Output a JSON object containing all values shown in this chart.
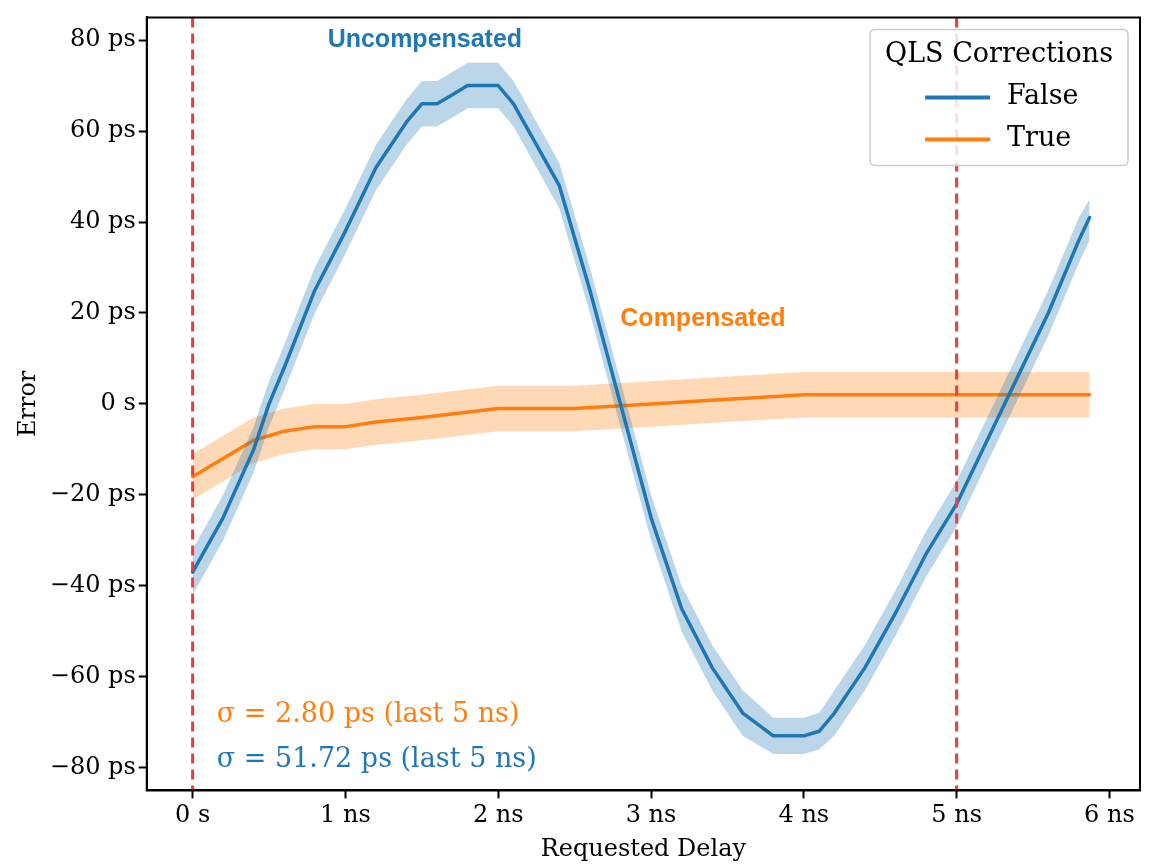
{
  "chart_data": {
    "type": "line",
    "xlabel": "Requested Delay",
    "ylabel": "Error",
    "legend_title": "QLS Corrections",
    "legend": "top right",
    "grid": false,
    "marker": "none",
    "xlim": [
      -0.3,
      6.2
    ],
    "ylim": [
      -85,
      85
    ],
    "xticks": [
      {
        "value": 0,
        "label": "0 s"
      },
      {
        "value": 1,
        "label": "1 ns"
      },
      {
        "value": 2,
        "label": "2 ns"
      },
      {
        "value": 3,
        "label": "3 ns"
      },
      {
        "value": 4,
        "label": "4 ns"
      },
      {
        "value": 5,
        "label": "5 ns"
      },
      {
        "value": 6,
        "label": "6 ns"
      }
    ],
    "yticks": [
      {
        "value": -80,
        "label": "−80 ps"
      },
      {
        "value": -60,
        "label": "−60 ps"
      },
      {
        "value": -40,
        "label": "−40 ps"
      },
      {
        "value": -20,
        "label": "−20 ps"
      },
      {
        "value": 0,
        "label": "0 s"
      },
      {
        "value": 20,
        "label": "20 ps"
      },
      {
        "value": 40,
        "label": "40 ps"
      },
      {
        "value": 60,
        "label": "60 ps"
      },
      {
        "value": 80,
        "label": "80 ps"
      }
    ],
    "series": [
      {
        "name": "False",
        "color": "#1f77b4",
        "x": [
          0,
          0.2,
          0.4,
          0.5,
          0.6,
          0.8,
          1.0,
          1.2,
          1.4,
          1.5,
          1.6,
          1.7,
          1.8,
          2.0,
          2.1,
          2.2,
          2.4,
          2.6,
          2.8,
          3.0,
          3.2,
          3.4,
          3.6,
          3.8,
          4.0,
          4.1,
          4.2,
          4.4,
          4.6,
          4.8,
          5.0,
          5.2,
          5.4,
          5.6,
          5.8,
          5.87
        ],
        "values": [
          -37,
          -25,
          -10,
          0,
          8,
          25,
          38,
          52,
          62,
          66,
          66,
          68,
          70,
          70,
          66,
          60,
          48,
          25,
          0,
          -25,
          -45,
          -58,
          -68,
          -73,
          -73,
          -72,
          -68,
          -58,
          -46,
          -33,
          -22,
          -8,
          6,
          20,
          36,
          41
        ],
        "lower": [
          -42,
          -30,
          -15,
          -5,
          3,
          20,
          33,
          47,
          57,
          61,
          61,
          63,
          65,
          65,
          61,
          55,
          43,
          20,
          -5,
          -30,
          -50,
          -63,
          -73,
          -77,
          -77,
          -76,
          -73,
          -63,
          -51,
          -38,
          -27,
          -13,
          1,
          15,
          31,
          36
        ],
        "upper": [
          -32,
          -20,
          -5,
          5,
          13,
          30,
          43,
          57,
          67,
          71,
          71,
          73,
          75,
          75,
          71,
          65,
          53,
          30,
          5,
          -20,
          -40,
          -53,
          -63,
          -69,
          -69,
          -68,
          -63,
          -53,
          -41,
          -28,
          -17,
          -3,
          11,
          25,
          41,
          45
        ]
      },
      {
        "name": "True",
        "color": "#ff7f0e",
        "x": [
          0,
          0.2,
          0.4,
          0.6,
          0.8,
          1.0,
          1.2,
          1.5,
          2.0,
          2.5,
          3.0,
          3.5,
          4.0,
          4.5,
          5.0,
          5.5,
          5.87
        ],
        "values": [
          -16,
          -12,
          -8,
          -6,
          -5,
          -5,
          -4,
          -3,
          -1,
          -1,
          0,
          1,
          2,
          2,
          2,
          2,
          2
        ],
        "lower": [
          -21,
          -17,
          -13,
          -11,
          -10,
          -10,
          -9,
          -8,
          -6,
          -6,
          -5,
          -4,
          -3,
          -3,
          -3,
          -3,
          -3
        ],
        "upper": [
          -11,
          -7,
          -3,
          -1,
          0,
          0,
          1,
          2,
          4,
          4,
          5,
          6,
          7,
          7,
          7,
          7,
          7
        ]
      }
    ],
    "ref_lines": [
      {
        "axis": "x",
        "value": 0,
        "color": "#ef3b3b",
        "line_style": "dashed"
      },
      {
        "axis": "x",
        "value": 5,
        "color": "#ef3b3b",
        "line_style": "dashed"
      }
    ],
    "annotations": [
      "Uncompensated",
      "Compensated",
      "σ = 2.80 ps (last 5 ns)",
      "σ = 51.72 ps (last 5 ns)"
    ]
  }
}
